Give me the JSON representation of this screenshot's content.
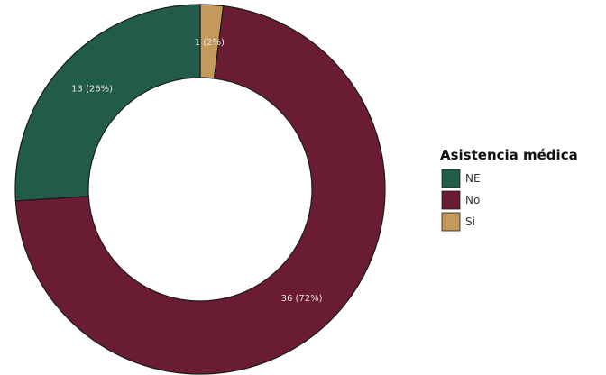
{
  "chart_data": {
    "type": "pie",
    "variant": "donut",
    "legend_title": "Asistencia médica",
    "legend_position": "right",
    "slices": [
      {
        "label": "Si",
        "value": 1,
        "percent": 2,
        "data_label": "1 (2%)",
        "color": "#c49a5c"
      },
      {
        "label": "No",
        "value": 36,
        "percent": 72,
        "data_label": "36 (72%)",
        "color": "#6a1c32"
      },
      {
        "label": "NE",
        "value": 13,
        "percent": 26,
        "data_label": "13 (26%)",
        "color": "#215c4b"
      }
    ],
    "legend_order": [
      "NE",
      "No",
      "Si"
    ]
  }
}
